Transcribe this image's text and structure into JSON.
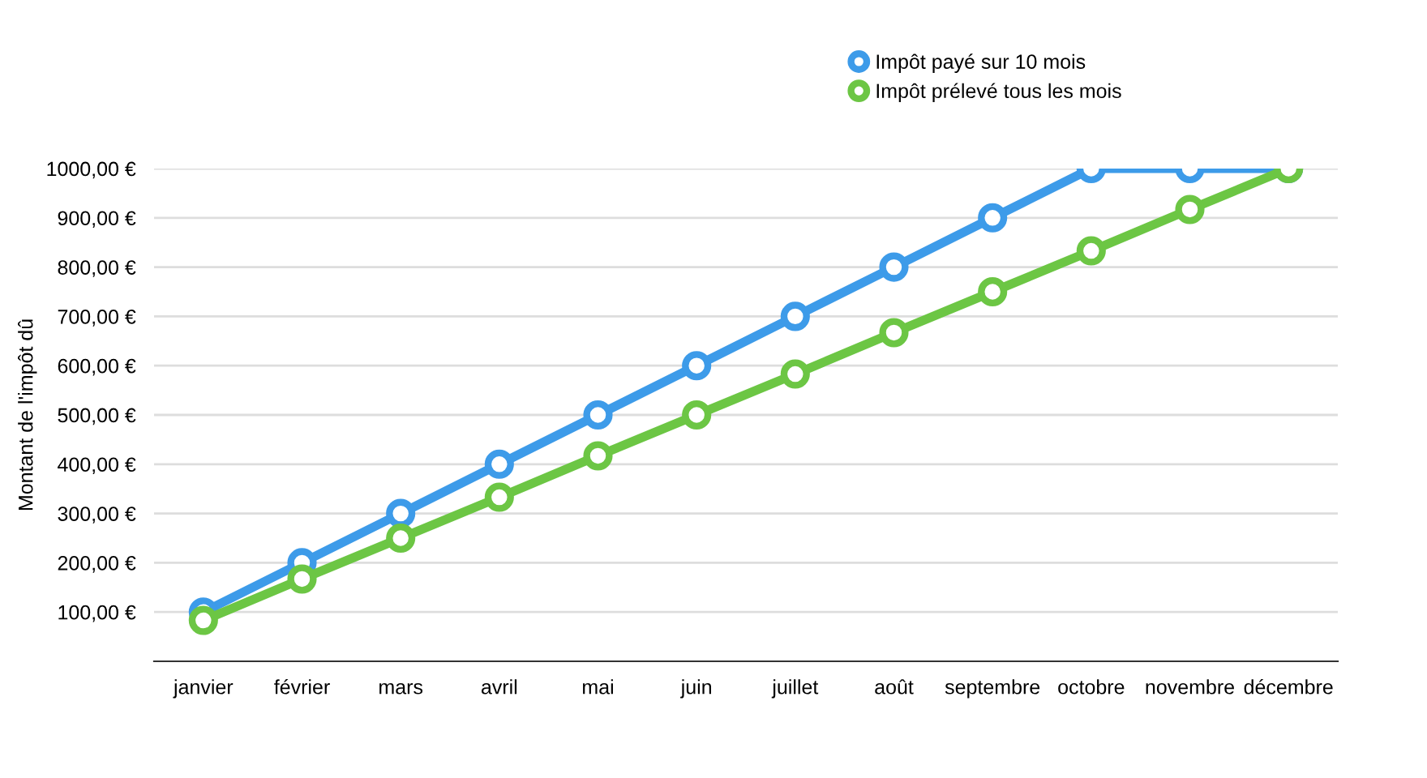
{
  "chart_data": {
    "type": "line",
    "ylabel": "Montant de l'impôt dû",
    "categories": [
      "janvier",
      "février",
      "mars",
      "avril",
      "mai",
      "juin",
      "juillet",
      "août",
      "septembre",
      "octobre",
      "novembre",
      "décembre"
    ],
    "series": [
      {
        "name": "Impôt payé sur 10 mois",
        "color": "#3d9be9",
        "values": [
          100,
          200,
          300,
          400,
          500,
          600,
          700,
          800,
          900,
          1000,
          1000,
          1000
        ]
      },
      {
        "name": "Impôt prélevé tous les mois",
        "color": "#6cc644",
        "values": [
          83,
          167,
          250,
          333,
          417,
          500,
          583,
          667,
          750,
          833,
          917,
          1000
        ]
      }
    ],
    "ylim": [
      0,
      1000
    ],
    "yticks": [
      {
        "value": 100,
        "label": "100,00 €"
      },
      {
        "value": 200,
        "label": "200,00 €"
      },
      {
        "value": 300,
        "label": "300,00 €"
      },
      {
        "value": 400,
        "label": "400,00 €"
      },
      {
        "value": 500,
        "label": "500,00 €"
      },
      {
        "value": 600,
        "label": "600,00 €"
      },
      {
        "value": 700,
        "label": "700,00 €"
      },
      {
        "value": 800,
        "label": "800,00 €"
      },
      {
        "value": 900,
        "label": "900,00 €"
      },
      {
        "value": 1000,
        "label": "1000,00 €"
      }
    ],
    "grid": "y",
    "legend": "top right",
    "marker": "circle",
    "line_style": "solid"
  }
}
